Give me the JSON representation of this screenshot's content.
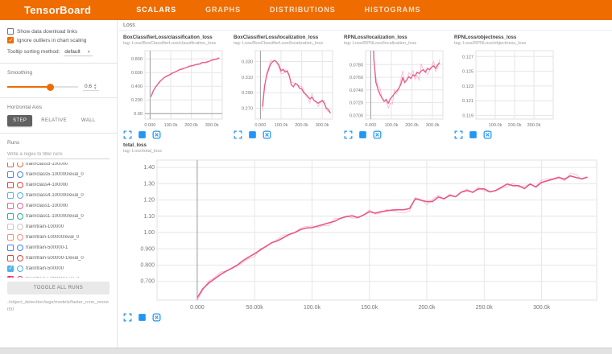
{
  "header": {
    "logo": "TensorBoard",
    "tabs": [
      {
        "label": "SCALARS",
        "active": true
      },
      {
        "label": "GRAPHS",
        "active": false
      },
      {
        "label": "DISTRIBUTIONS",
        "active": false
      },
      {
        "label": "HISTOGRAMS",
        "active": false
      }
    ]
  },
  "sidebar": {
    "checkboxes": [
      {
        "label": "Show data download links",
        "checked": false
      },
      {
        "label": "Ignore outliers in chart scaling",
        "checked": true
      }
    ],
    "tooltip_sorting": {
      "label": "Tooltip sorting method:",
      "value": "default"
    },
    "smoothing": {
      "label": "Smoothing",
      "value": "0.6",
      "percent": 60
    },
    "horizontal_axis": {
      "label": "Horizontal Axis",
      "options": [
        {
          "label": "STEP",
          "active": true
        },
        {
          "label": "RELATIVE",
          "active": false
        },
        {
          "label": "WALL",
          "active": false
        }
      ]
    },
    "runs": {
      "label": "Runs",
      "filter_placeholder": "Write a regex to filter runs",
      "items": [
        {
          "name": "train/class5-100000",
          "color": "#e8633a",
          "checked": false
        },
        {
          "name": "train/class5-100000/eval_0",
          "color": "#4285f4",
          "checked": false
        },
        {
          "name": "train/class4-100000",
          "color": "#db4437",
          "checked": false
        },
        {
          "name": "train/class4-100000/eval_0",
          "color": "#4fb3e8",
          "checked": false
        },
        {
          "name": "train/class1-100000",
          "color": "#ea5f96",
          "checked": false
        },
        {
          "name": "train/class1-100000/eval_0",
          "color": "#2bab99",
          "checked": false
        },
        {
          "name": "train/train-100000",
          "color": "#c9c9c9",
          "checked": false
        },
        {
          "name": "train/train-100000/eval_0",
          "color": "#f2907a",
          "checked": false
        },
        {
          "name": "train/train-500000-1",
          "color": "#4285f4",
          "checked": false
        },
        {
          "name": "train/train-500000-1/eval_0",
          "color": "#db4437",
          "checked": false
        },
        {
          "name": "train/train-500000",
          "color": "#4fb3e8",
          "checked": true
        },
        {
          "name": "train/train-500000/eval_0",
          "color": "#e8336e",
          "checked": true
        }
      ],
      "toggle_all_label": "TOGGLE ALL RUNS",
      "path": "./object_detection/wgs/models/faster_rcnn_resnet50"
    }
  },
  "main": {
    "category_label": "Loss",
    "card_icons": [
      "expand-chart",
      "toggle-log-y-axis",
      "fit-domain-to-data"
    ],
    "accent_color": "#ef6c00",
    "icon_color": "#2196f3"
  },
  "chart_data": [
    {
      "type": "line",
      "size": "small",
      "title": "BoxClassifierLoss/classification_loss",
      "subtitle": "tag: Loss/BoxClassifierLoss/classification_loss",
      "xlabel": "step",
      "ylabel": "",
      "grid": true,
      "legend": "none",
      "xlim": [
        -25000,
        350000
      ],
      "ylim": [
        -0.08,
        0.92
      ],
      "xticks": [
        {
          "l": "0.000",
          "v": 0
        },
        {
          "l": "100.0k",
          "v": 100000
        },
        {
          "l": "200.0k",
          "v": 200000
        },
        {
          "l": "300.0k",
          "v": 300000
        }
      ],
      "yticks": [
        {
          "l": "0.800",
          "v": 0.8
        },
        {
          "l": "0.600",
          "v": 0.6
        },
        {
          "l": "0.400",
          "v": 0.4
        },
        {
          "l": "0.200",
          "v": 0.2
        },
        {
          "l": "0.00",
          "v": 0.0
        }
      ],
      "series": [
        {
          "name": "train/train-500000/eval_0",
          "color": "#e8568a",
          "smoothing": 0.6,
          "x0": 5000,
          "dx": 10000,
          "raw_amp": 0.016,
          "y": [
            0.25,
            0.33,
            0.38,
            0.42,
            0.46,
            0.49,
            0.52,
            0.54,
            0.555,
            0.57,
            0.59,
            0.6,
            0.615,
            0.63,
            0.645,
            0.65,
            0.665,
            0.67,
            0.685,
            0.695,
            0.7,
            0.71,
            0.72,
            0.725,
            0.73,
            0.75,
            0.745,
            0.755,
            0.765,
            0.775,
            0.785,
            0.795,
            0.8,
            0.815
          ]
        }
      ]
    },
    {
      "type": "line",
      "size": "small",
      "title": "BoxClassifierLoss/localization_loss",
      "subtitle": "tag: Loss/BoxClassifierLoss/localization_loss",
      "xlabel": "step",
      "ylabel": "",
      "grid": true,
      "legend": "none",
      "xlim": [
        -25000,
        350000
      ],
      "ylim": [
        0.256,
        0.344
      ],
      "xticks": [
        {
          "l": "0.000",
          "v": 0
        },
        {
          "l": "100.0k",
          "v": 100000
        },
        {
          "l": "200.0k",
          "v": 200000
        },
        {
          "l": "300.0k",
          "v": 300000
        }
      ],
      "yticks": [
        {
          "l": "0.330",
          "v": 0.33
        },
        {
          "l": "0.310",
          "v": 0.31
        },
        {
          "l": "0.290",
          "v": 0.29
        },
        {
          "l": "0.270",
          "v": 0.27
        }
      ],
      "series": [
        {
          "name": "train/train-500000/eval_0",
          "color": "#e8568a",
          "smoothing": 0.6,
          "x0": 10000,
          "dx": 10000,
          "raw_amp": 0.006,
          "y": [
            0.272,
            0.298,
            0.312,
            0.32,
            0.327,
            0.33,
            0.3315,
            0.329,
            0.3255,
            0.318,
            0.32,
            0.3165,
            0.318,
            0.312,
            0.3,
            0.2975,
            0.302,
            0.3,
            0.2955,
            0.295,
            0.29,
            0.288,
            0.285,
            0.282,
            0.284,
            0.28,
            0.278,
            0.2765,
            0.278,
            0.28,
            0.276,
            0.27,
            0.268,
            0.2635
          ]
        }
      ]
    },
    {
      "type": "line",
      "size": "small",
      "title": "RPNLoss/localization_loss",
      "subtitle": "tag: Loss/RPNLoss/localization_loss",
      "xlabel": "step",
      "ylabel": "",
      "grid": true,
      "legend": "none",
      "xlim": [
        -25000,
        350000
      ],
      "ylim": [
        0.0694,
        0.0802
      ],
      "xticks": [
        {
          "l": "0.000",
          "v": 0
        },
        {
          "l": "100.0k",
          "v": 100000
        },
        {
          "l": "200.0k",
          "v": 200000
        },
        {
          "l": "300.0k",
          "v": 300000
        }
      ],
      "yticks": [
        {
          "l": "0.0780",
          "v": 0.078
        },
        {
          "l": "0.0760",
          "v": 0.076
        },
        {
          "l": "0.0740",
          "v": 0.074
        },
        {
          "l": "0.0720",
          "v": 0.072
        },
        {
          "l": "0.0700",
          "v": 0.07
        }
      ],
      "series": [
        {
          "name": "train/train-500000/eval_0",
          "color": "#e8568a",
          "smoothing": 0.6,
          "x0": 5000,
          "dx": 10000,
          "raw_amp": 0.0013,
          "y": [
            0.094,
            0.079,
            0.0752,
            0.0741,
            0.0733,
            0.0727,
            0.0722,
            0.0725,
            0.0719,
            0.0726,
            0.073,
            0.0734,
            0.0738,
            0.0742,
            0.0748,
            0.0759,
            0.0752,
            0.0756,
            0.0761,
            0.0758,
            0.0764,
            0.0762,
            0.0768,
            0.0766,
            0.077,
            0.0772,
            0.0768,
            0.0774,
            0.0772,
            0.0776,
            0.0778,
            0.0774,
            0.078,
            0.0783
          ]
        }
      ]
    },
    {
      "type": "line",
      "size": "small",
      "title": "RPNLoss/objectness_loss",
      "subtitle": "tag: Loss/RPNLoss/objectness_loss",
      "xlabel": "step",
      "ylabel": "",
      "grid": true,
      "legend": "none",
      "xlim": [
        0,
        400000
      ],
      "ylim": [
        0.1185,
        0.1278
      ],
      "xticks": [
        {
          "l": "100.0k",
          "v": 100000
        },
        {
          "l": "200.0k",
          "v": 200000
        },
        {
          "l": "300.0k",
          "v": 300000
        }
      ],
      "yticks": [
        {
          "l": "0.127",
          "v": 0.127
        },
        {
          "l": "0.125",
          "v": 0.125
        },
        {
          "l": "0.123",
          "v": 0.123
        },
        {
          "l": "0.121",
          "v": 0.121
        },
        {
          "l": "0.119",
          "v": 0.119
        }
      ],
      "series": []
    },
    {
      "type": "line",
      "size": "large",
      "title": "total_loss",
      "subtitle": "tag: Loss/total_loss",
      "xlabel": "step",
      "ylabel": "",
      "grid": true,
      "legend": "none",
      "xlim": [
        -35000,
        348000
      ],
      "ylim": [
        0.585,
        1.445
      ],
      "xticks": [
        {
          "l": "0.000",
          "v": 0
        },
        {
          "l": "50.00k",
          "v": 50000
        },
        {
          "l": "100.0k",
          "v": 100000
        },
        {
          "l": "150.0k",
          "v": 150000
        },
        {
          "l": "200.0k",
          "v": 200000
        },
        {
          "l": "250.0k",
          "v": 250000
        },
        {
          "l": "300.0k",
          "v": 300000
        }
      ],
      "yticks": [
        {
          "l": "1.40",
          "v": 1.4
        },
        {
          "l": "1.30",
          "v": 1.3
        },
        {
          "l": "1.20",
          "v": 1.2
        },
        {
          "l": "1.10",
          "v": 1.1
        },
        {
          "l": "1.00",
          "v": 1.0
        },
        {
          "l": "0.900",
          "v": 0.9
        },
        {
          "l": "0.800",
          "v": 0.8
        },
        {
          "l": "0.700",
          "v": 0.7
        }
      ],
      "series": [
        {
          "name": "train/train-500000/eval_0",
          "color": "#e8568a",
          "smoothing": 0.6,
          "x0": 0,
          "dx": 5000,
          "raw_amp": 0.02,
          "y": [
            0.6,
            0.655,
            0.69,
            0.715,
            0.74,
            0.762,
            0.78,
            0.8,
            0.828,
            0.85,
            0.87,
            0.893,
            0.916,
            0.938,
            0.95,
            0.968,
            0.988,
            1.0,
            1.018,
            1.028,
            1.03,
            1.04,
            1.05,
            1.06,
            1.07,
            1.088,
            1.098,
            1.103,
            1.092,
            1.108,
            1.128,
            1.12,
            1.128,
            1.133,
            1.138,
            1.14,
            1.14,
            1.148,
            1.208,
            1.198,
            1.19,
            1.19,
            1.218,
            1.208,
            1.228,
            1.22,
            1.248,
            1.258,
            1.248,
            1.268,
            1.268,
            1.25,
            1.258,
            1.278,
            1.298,
            1.288,
            1.288,
            1.27,
            1.298,
            1.28,
            1.308,
            1.318,
            1.328,
            1.338,
            1.328,
            1.348,
            1.338,
            1.33,
            1.34
          ]
        }
      ]
    }
  ]
}
